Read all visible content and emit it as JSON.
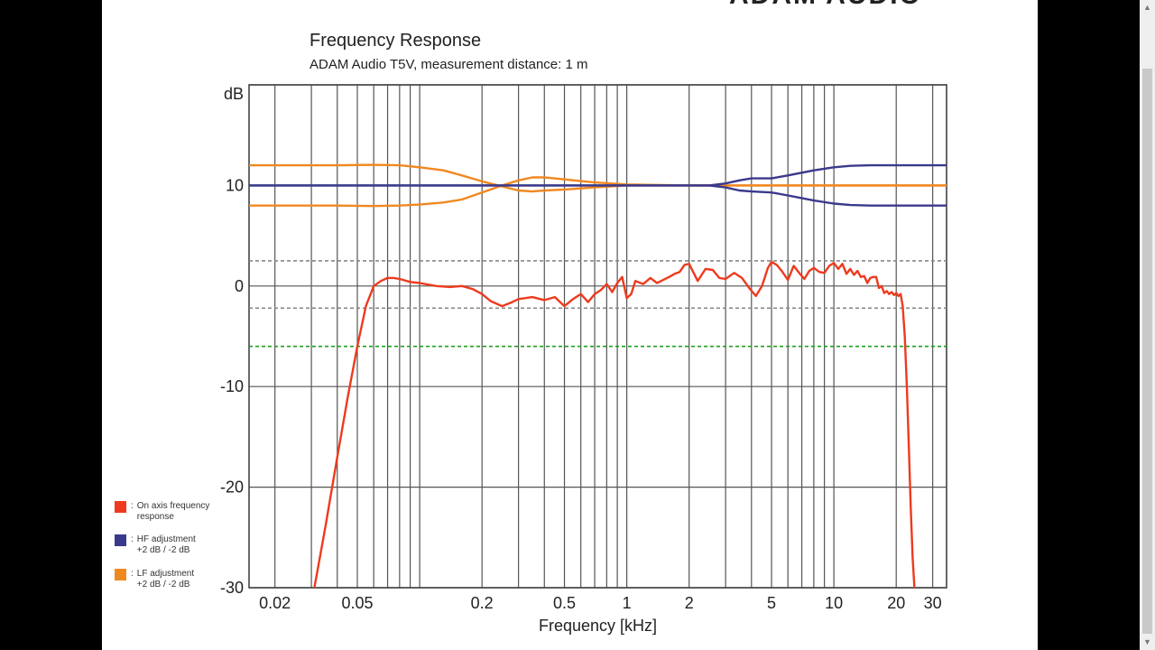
{
  "logo_text": "ADAM AUDIO",
  "chart_data": {
    "type": "line",
    "title": "Frequency Response",
    "subtitle": "ADAM Audio T5V, measurement distance: 1 m",
    "xlabel": "Frequency [kHz]",
    "ylabel": "dB",
    "xscale": "log",
    "xlim": [
      0.015,
      35
    ],
    "ylim": [
      -30,
      20
    ],
    "x_tick_labels": [
      "0.02",
      "0.05",
      "0.2",
      "0.5",
      "1",
      "2",
      "5",
      "10",
      "20",
      "30"
    ],
    "y_tick_labels": [
      "10",
      "0",
      "-10",
      "-20",
      "-30"
    ],
    "grid": true,
    "reference_lines": [
      {
        "y": 2.5,
        "color": "#888888",
        "style": "dashed"
      },
      {
        "y": -2.2,
        "color": "#888888",
        "style": "dashed"
      },
      {
        "y": -6,
        "color": "#20a020",
        "style": "dashed"
      }
    ],
    "series": [
      {
        "name": "On axis frequency response",
        "color": "#ee3a1e",
        "legend_label": "On axis frequency\nresponse",
        "x": [
          0.031,
          0.035,
          0.04,
          0.045,
          0.05,
          0.055,
          0.06,
          0.065,
          0.07,
          0.075,
          0.08,
          0.09,
          0.1,
          0.12,
          0.14,
          0.16,
          0.18,
          0.2,
          0.22,
          0.25,
          0.28,
          0.3,
          0.35,
          0.4,
          0.45,
          0.5,
          0.55,
          0.6,
          0.65,
          0.7,
          0.75,
          0.8,
          0.85,
          0.9,
          0.95,
          1.0,
          1.05,
          1.1,
          1.2,
          1.3,
          1.4,
          1.5,
          1.6,
          1.7,
          1.8,
          1.9,
          2.0,
          2.2,
          2.4,
          2.6,
          2.8,
          3.0,
          3.3,
          3.6,
          3.9,
          4.2,
          4.5,
          4.8,
          5.0,
          5.3,
          5.6,
          6.0,
          6.4,
          6.8,
          7.2,
          7.6,
          8.0,
          8.5,
          9.0,
          9.5,
          10.0,
          10.5,
          11.0,
          11.5,
          12.0,
          12.5,
          13.0,
          13.5,
          14.0,
          14.5,
          15.0,
          15.5,
          16.0,
          16.5,
          17.0,
          17.5,
          18.0,
          18.5,
          19.0,
          19.5,
          20.0,
          20.5,
          21.0,
          21.5,
          22.0,
          22.5,
          23.0,
          23.5,
          24.0,
          24.5
        ],
        "y": [
          -30,
          -24,
          -17,
          -11,
          -6,
          -2,
          0,
          0.5,
          0.8,
          0.8,
          0.7,
          0.4,
          0.3,
          0,
          -0.1,
          0,
          -0.3,
          -0.8,
          -1.5,
          -2,
          -1.6,
          -1.3,
          -1.1,
          -1.4,
          -1.1,
          -2,
          -1.3,
          -0.8,
          -1.6,
          -0.8,
          -0.4,
          0.2,
          -0.6,
          0.3,
          0.9,
          -1.2,
          -0.8,
          0.5,
          0.2,
          0.8,
          0.3,
          0.6,
          0.9,
          1.2,
          1.4,
          2.1,
          2.2,
          0.5,
          1.7,
          1.6,
          0.8,
          0.7,
          1.3,
          0.8,
          -0.2,
          -1,
          0,
          1.8,
          2.4,
          2.1,
          1.5,
          0.6,
          2,
          1.3,
          0.7,
          1.5,
          1.8,
          1.4,
          1.3,
          2,
          2.3,
          1.7,
          2.2,
          1.2,
          1.7,
          1.1,
          1.5,
          0.9,
          1,
          0.3,
          0.8,
          0.9,
          0.9,
          -0.2,
          0,
          -0.7,
          -0.5,
          -0.8,
          -0.6,
          -0.9,
          -0.7,
          -1,
          -0.8,
          -2,
          -5,
          -10,
          -16,
          -22,
          -27,
          -30
        ]
      },
      {
        "name": "HF adjustment +2 dB",
        "color": "#3a3a8c",
        "x": [
          0.015,
          0.1,
          0.5,
          1,
          2,
          2.5,
          3,
          3.5,
          4,
          5,
          6,
          8,
          10,
          12,
          15,
          20,
          35
        ],
        "y": [
          10,
          10,
          10,
          10,
          10,
          10,
          10.2,
          10.5,
          10.7,
          10.7,
          11,
          11.5,
          11.8,
          11.95,
          12,
          12,
          12
        ]
      },
      {
        "name": "HF adjustment -2 dB",
        "color": "#3a3a8c",
        "x": [
          0.015,
          0.1,
          0.5,
          1,
          2,
          2.5,
          3,
          3.5,
          4,
          5,
          6,
          8,
          10,
          12,
          15,
          20,
          35
        ],
        "y": [
          10,
          10,
          10,
          10,
          10,
          10,
          9.8,
          9.5,
          9.4,
          9.3,
          9,
          8.5,
          8.2,
          8.05,
          8,
          8,
          8
        ]
      },
      {
        "name": "LF adjustment +2 dB",
        "color": "#f08820",
        "x": [
          0.015,
          0.04,
          0.06,
          0.08,
          0.1,
          0.13,
          0.16,
          0.2,
          0.25,
          0.3,
          0.35,
          0.4,
          0.5,
          0.7,
          1,
          2,
          5,
          10,
          35
        ],
        "y": [
          12,
          12,
          12.05,
          12,
          11.8,
          11.5,
          11,
          10.4,
          9.9,
          9.5,
          9.4,
          9.5,
          9.6,
          9.8,
          10,
          10,
          10,
          10,
          10
        ]
      },
      {
        "name": "LF adjustment -2 dB",
        "color": "#f08820",
        "x": [
          0.015,
          0.04,
          0.06,
          0.08,
          0.1,
          0.13,
          0.16,
          0.2,
          0.25,
          0.3,
          0.35,
          0.4,
          0.5,
          0.7,
          1,
          2,
          5,
          10,
          35
        ],
        "y": [
          8,
          8,
          7.95,
          8,
          8.1,
          8.3,
          8.6,
          9.3,
          10,
          10.5,
          10.8,
          10.8,
          10.6,
          10.3,
          10.1,
          10,
          10,
          10,
          10
        ]
      }
    ],
    "legend": {
      "placement": "bottom-left",
      "entries": [
        {
          "label": "On axis frequency\nresponse",
          "color": "#ee3a1e"
        },
        {
          "label": "HF adjustment\n+2 dB / -2 dB",
          "color": "#3a3a8c"
        },
        {
          "label": "LF adjustment\n+2 dB / -2 dB",
          "color": "#f08820"
        }
      ]
    }
  }
}
